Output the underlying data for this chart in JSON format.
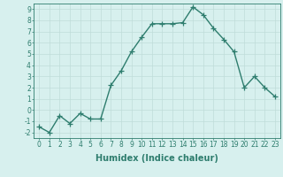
{
  "title": "",
  "xlabel": "Humidex (Indice chaleur)",
  "ylabel": "",
  "x": [
    0,
    1,
    2,
    3,
    4,
    5,
    6,
    7,
    8,
    9,
    10,
    11,
    12,
    13,
    14,
    15,
    16,
    17,
    18,
    19,
    20,
    21,
    22,
    23
  ],
  "y": [
    -1.5,
    -2.0,
    -0.5,
    -1.2,
    -0.3,
    -0.8,
    -0.8,
    2.2,
    3.5,
    5.2,
    6.5,
    7.7,
    7.7,
    7.7,
    7.8,
    9.2,
    8.5,
    7.3,
    6.3,
    5.2,
    2.0,
    3.0,
    2.0,
    1.2
  ],
  "line_color": "#2e7d6e",
  "marker": "+",
  "markersize": 4,
  "linewidth": 1.0,
  "bg_color": "#d7f0ee",
  "grid_color": "#c0dcd9",
  "ylim": [
    -2.5,
    9.5
  ],
  "xlim": [
    -0.5,
    23.5
  ],
  "yticks": [
    -2,
    -1,
    0,
    1,
    2,
    3,
    4,
    5,
    6,
    7,
    8,
    9
  ],
  "xticks": [
    0,
    1,
    2,
    3,
    4,
    5,
    6,
    7,
    8,
    9,
    10,
    11,
    12,
    13,
    14,
    15,
    16,
    17,
    18,
    19,
    20,
    21,
    22,
    23
  ],
  "tick_fontsize": 5.5,
  "xlabel_fontsize": 7.0,
  "tick_color": "#2e7d6e"
}
